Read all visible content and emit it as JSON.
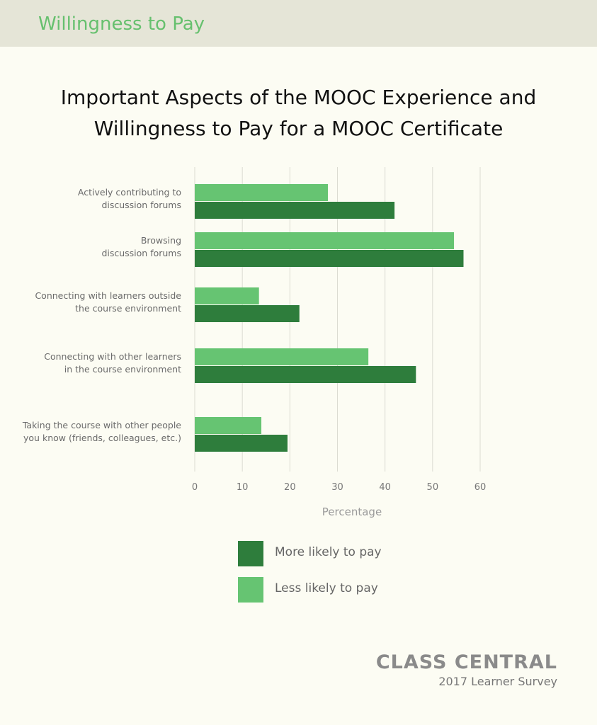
{
  "header": {
    "title": "Willingness to Pay"
  },
  "chart_data": {
    "type": "bar",
    "orientation": "horizontal",
    "title_lines": [
      "Important Aspects of the MOOC Experience and",
      "Willingness to Pay for a MOOC Certificate"
    ],
    "categories": [
      [
        "Actively contributing to",
        "discussion forums"
      ],
      [
        "Browsing",
        "discussion forums"
      ],
      [
        "Connecting with learners outside",
        "the course environment"
      ],
      [
        "Connecting with other learners",
        "in the course environment"
      ],
      [
        "Taking the course with other people",
        "you know (friends, colleagues, etc.)"
      ]
    ],
    "series": [
      {
        "name": "Less likely to pay",
        "color": "#66c472",
        "values": [
          28,
          54.5,
          13.5,
          36.5,
          14
        ]
      },
      {
        "name": "More likely to pay",
        "color": "#2e7d3c",
        "values": [
          42,
          56.5,
          22,
          46.5,
          19.5
        ]
      }
    ],
    "xlabel": "Percentage",
    "xlim": [
      0,
      60
    ],
    "xticks": [
      0,
      10,
      20,
      30,
      40,
      50,
      60
    ],
    "grid": true,
    "legend_position": "bottom"
  },
  "legend": [
    {
      "label": "More likely to pay",
      "color": "#2e7d3c"
    },
    {
      "label": "Less likely to pay",
      "color": "#66c472"
    }
  ],
  "brand": {
    "name": "CLASS CENTRAL",
    "subtitle": "2017 Learner Survey"
  }
}
